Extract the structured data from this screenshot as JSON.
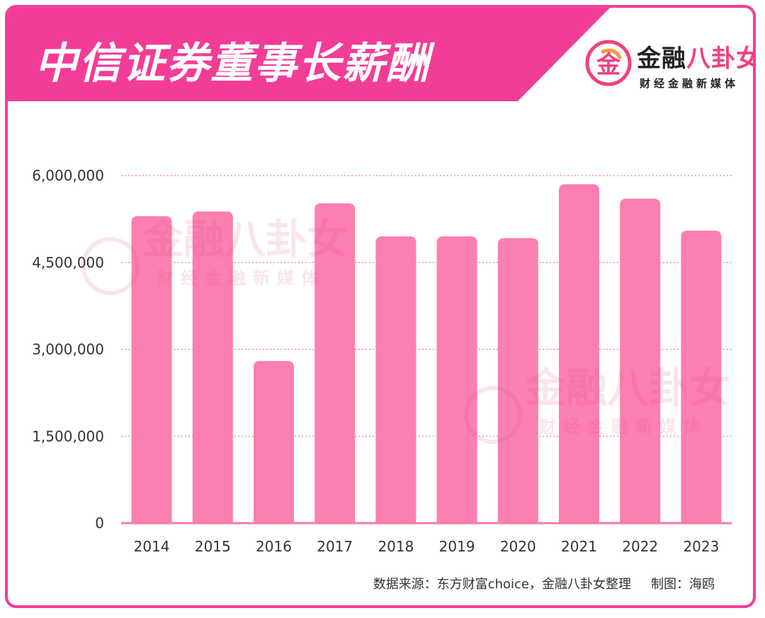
{
  "header": {
    "title": "中信证券董事长薪酬"
  },
  "logo": {
    "glyph": "金",
    "name_main": "金融",
    "name_accent": "八卦女",
    "subtitle": "财经金融新媒体"
  },
  "source": {
    "text": "数据来源：东方财富choice，金融八卦女整理",
    "author": "制图：海鸥"
  },
  "colors": {
    "accent": "#f23d96",
    "bar": "#fb7fb0",
    "grid": "#f27ab0"
  },
  "chart_data": {
    "type": "bar",
    "title": "中信证券董事长薪酬",
    "xlabel": "",
    "ylabel": "",
    "categories": [
      "2014",
      "2015",
      "2016",
      "2017",
      "2018",
      "2019",
      "2020",
      "2021",
      "2022",
      "2023"
    ],
    "values": [
      5300000,
      5380000,
      2800000,
      5520000,
      4950000,
      4950000,
      4920000,
      5850000,
      5600000,
      5050000
    ],
    "ylim": [
      0,
      6000000
    ],
    "yticks": [
      0,
      1500000,
      3000000,
      4500000,
      6000000
    ],
    "ytick_labels": [
      "0",
      "1,500,000",
      "3,000,000",
      "4,500,000",
      "6,000,000"
    ],
    "grid": true,
    "legend": "none"
  }
}
